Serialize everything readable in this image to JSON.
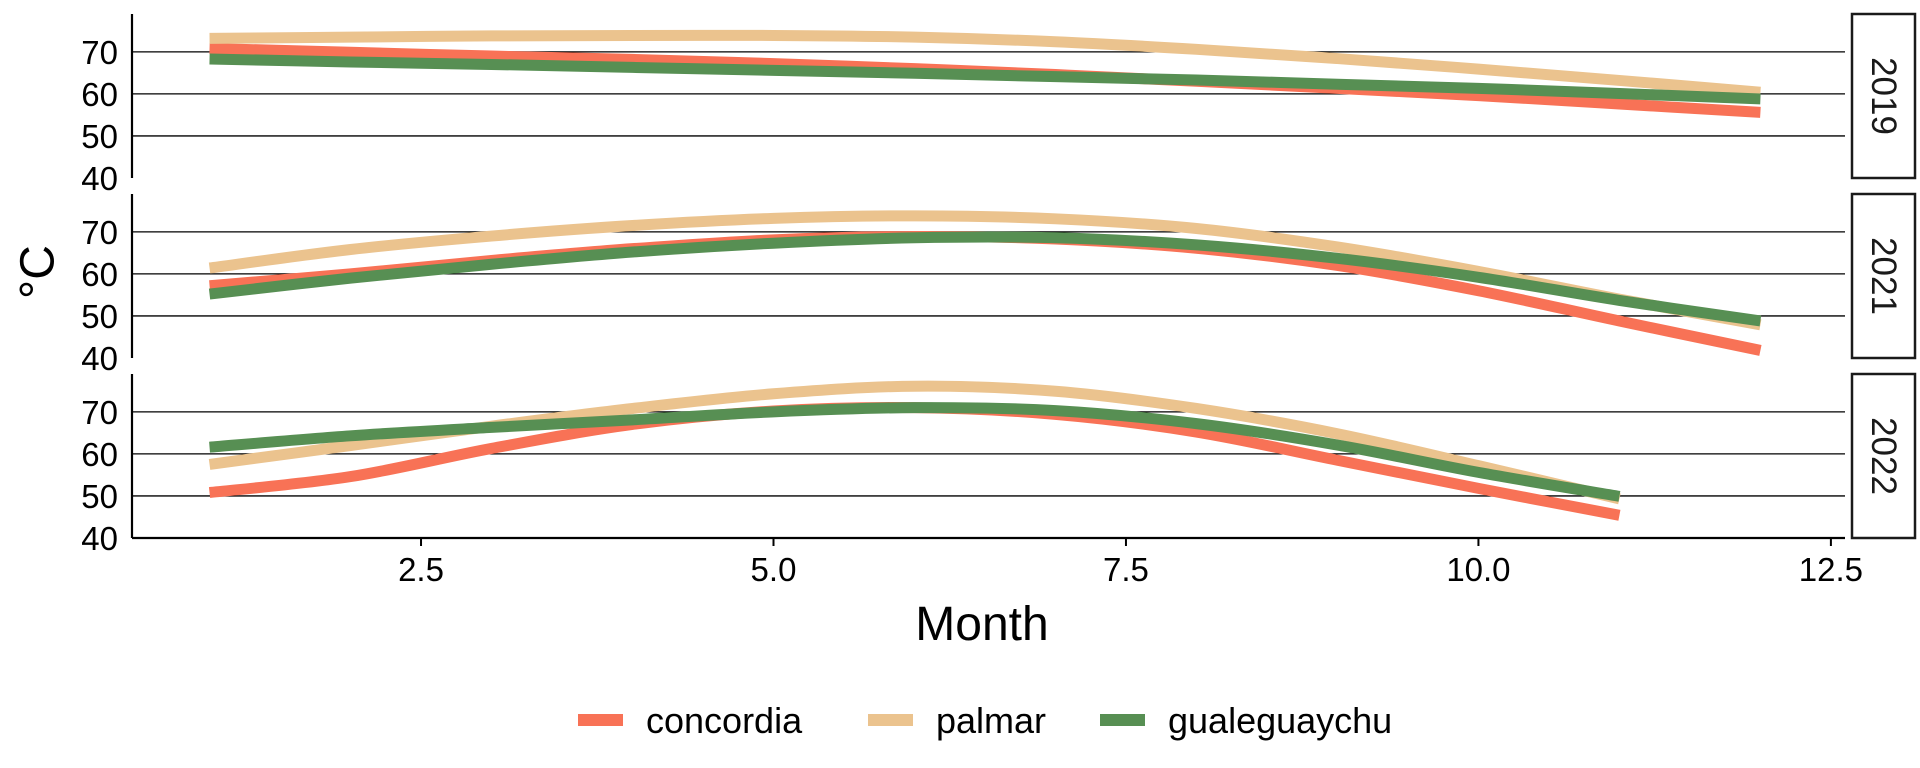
{
  "chart_data": {
    "type": "line",
    "xlabel": "Month",
    "ylabel": "°C",
    "xlim": [
      0.45,
      12.6
    ],
    "ylim": [
      40,
      79
    ],
    "x_ticks": [
      2.5,
      5.0,
      7.5,
      10.0,
      12.5
    ],
    "x_tick_labels": [
      "2.5",
      "5.0",
      "7.5",
      "10.0",
      "12.5"
    ],
    "y_ticks": [
      40,
      50,
      60,
      70
    ],
    "y_tick_labels": [
      "40",
      "50",
      "60",
      "70"
    ],
    "grid": "horizontal major",
    "legend_position": "bottom",
    "series_styles": [
      {
        "name": "concordia",
        "color": "#f87256"
      },
      {
        "name": "palmar",
        "color": "#ebc38e"
      },
      {
        "name": "gualeguaychu",
        "color": "#578f53"
      }
    ],
    "panels": [
      {
        "label": "2019",
        "series": [
          {
            "name": "concordia",
            "x": [
              1,
              2,
              3,
              4,
              5,
              6,
              7,
              8,
              9,
              10,
              11,
              12
            ],
            "values": [
              70.8,
              69.9,
              69.0,
              68.2,
              67.2,
              66.0,
              64.6,
              63.0,
              61.3,
              59.6,
              57.6,
              55.6
            ]
          },
          {
            "name": "palmar",
            "x": [
              1,
              2,
              3,
              4,
              5,
              6,
              7,
              8,
              9,
              10,
              11,
              12
            ],
            "values": [
              73.2,
              73.5,
              73.8,
              73.9,
              73.9,
              73.5,
              72.4,
              70.6,
              68.4,
              65.9,
              63.2,
              60.4
            ]
          },
          {
            "name": "gualeguaychu",
            "x": [
              1,
              2,
              3,
              4,
              5,
              6,
              7,
              8,
              9,
              10,
              11,
              12
            ],
            "values": [
              68.3,
              67.6,
              67.0,
              66.3,
              65.6,
              64.9,
              64.1,
              63.3,
              62.3,
              61.3,
              60.1,
              58.8
            ]
          }
        ]
      },
      {
        "label": "2021",
        "series": [
          {
            "name": "concordia",
            "x": [
              1,
              2,
              3,
              4,
              5,
              6,
              7,
              8,
              9,
              10,
              11,
              12
            ],
            "values": [
              57.2,
              60.0,
              63.2,
              66.0,
              68.1,
              68.9,
              68.3,
              66.1,
              62.0,
              56.0,
              48.8,
              41.8
            ]
          },
          {
            "name": "palmar",
            "x": [
              1,
              2,
              3,
              4,
              5,
              6,
              7,
              8,
              9,
              10,
              11,
              12
            ],
            "values": [
              61.4,
              65.8,
              69.0,
              71.5,
              73.2,
              73.8,
              73.1,
              70.8,
              66.4,
              60.6,
              54.0,
              47.9
            ]
          },
          {
            "name": "gualeguaychu",
            "x": [
              1,
              2,
              3,
              4,
              5,
              6,
              7,
              8,
              9,
              10,
              11,
              12
            ],
            "values": [
              55.2,
              59.0,
              62.3,
              65.2,
              67.3,
              68.6,
              68.6,
              66.9,
              63.7,
              59.2,
              53.7,
              48.8
            ]
          }
        ]
      },
      {
        "label": "2022",
        "series": [
          {
            "name": "concordia",
            "x": [
              1,
              2,
              3,
              4,
              5,
              6,
              7,
              8,
              9,
              10,
              11
            ],
            "values": [
              50.8,
              54.6,
              61.3,
              67.0,
              70.2,
              71.0,
              69.4,
              65.2,
              58.5,
              51.8,
              45.4
            ]
          },
          {
            "name": "palmar",
            "x": [
              1,
              2,
              3,
              4,
              5,
              6,
              7,
              8,
              9,
              10,
              11
            ],
            "values": [
              57.5,
              62.0,
              66.6,
              70.8,
              74.3,
              76.1,
              74.9,
              70.8,
              64.8,
              57.2,
              49.3
            ]
          },
          {
            "name": "gualeguaychu",
            "x": [
              1,
              2,
              3,
              4,
              5,
              6,
              7,
              8,
              9,
              10,
              11
            ],
            "values": [
              61.6,
              64.3,
              66.3,
              68.1,
              70.0,
              71.0,
              70.3,
              67.2,
              62.1,
              55.6,
              49.9
            ]
          }
        ]
      }
    ]
  }
}
